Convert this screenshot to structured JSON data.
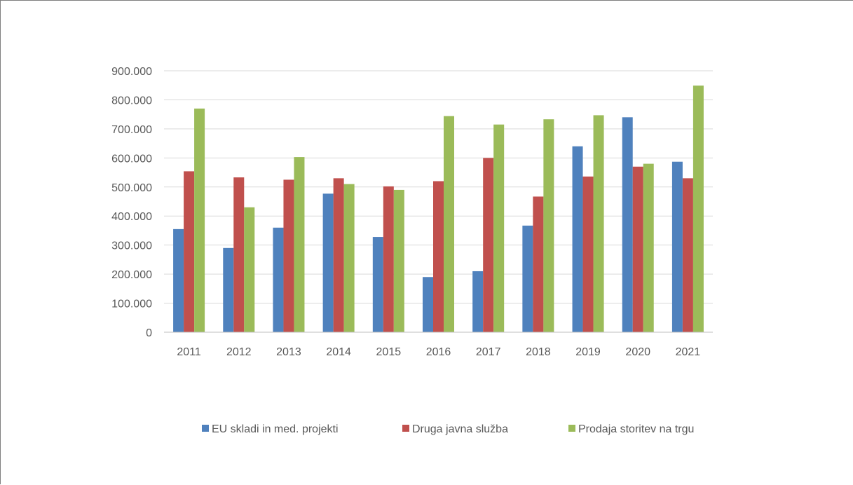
{
  "chart_data": {
    "type": "bar",
    "categories": [
      "2011",
      "2012",
      "2013",
      "2014",
      "2015",
      "2016",
      "2017",
      "2018",
      "2019",
      "2020",
      "2021"
    ],
    "series": [
      {
        "name": "EU skladi in med. projekti",
        "color": "#4f81bd",
        "values": [
          355000,
          290000,
          360000,
          477000,
          328000,
          190000,
          210000,
          367000,
          640000,
          740000,
          587000
        ]
      },
      {
        "name": "Druga javna služba",
        "color": "#c0504d",
        "values": [
          554000,
          533000,
          525000,
          530000,
          502000,
          520000,
          600000,
          467000,
          536000,
          570000,
          530000
        ]
      },
      {
        "name": "Prodaja storitev na trgu",
        "color": "#9bbb59",
        "values": [
          770000,
          430000,
          603000,
          510000,
          490000,
          744000,
          715000,
          733000,
          747000,
          580000,
          849000
        ]
      }
    ],
    "ylim": [
      0,
      900000
    ],
    "yticks": [
      0,
      100000,
      200000,
      300000,
      400000,
      500000,
      600000,
      700000,
      800000,
      900000
    ],
    "ytick_labels": [
      "0",
      "100.000",
      "200.000",
      "300.000",
      "400.000",
      "500.000",
      "600.000",
      "700.000",
      "800.000",
      "900.000"
    ],
    "grid": true,
    "legend_position": "bottom",
    "title": "",
    "xlabel": "",
    "ylabel": ""
  }
}
